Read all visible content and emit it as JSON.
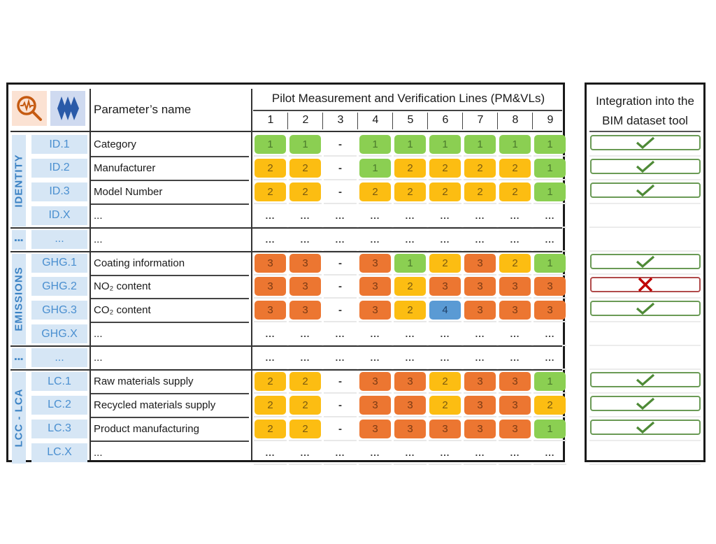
{
  "header": {
    "parameter_name_label": "Parameter’s name",
    "pm_title": "Pilot Measurement and Verification Lines (PM&VLs)",
    "pm_columns": [
      "1",
      "2",
      "3",
      "4",
      "5",
      "6",
      "7",
      "8",
      "9"
    ],
    "integration_title_line1": "Integration into the",
    "integration_title_line2": "BIM dataset tool",
    "icons": [
      "magnifier-pulse-icon",
      "diamond-stack-icon"
    ]
  },
  "colors": {
    "level_1": "#8bcf52",
    "level_2": "#fcbd12",
    "level_3": "#ec7631",
    "level_4": "#5a9ad4",
    "category_band": "#d6e6f5",
    "category_text": "#3b82c4",
    "check_green": "#4e8a36",
    "cross_red": "#c00000"
  },
  "groups": [
    {
      "category": "IDENTITY",
      "rows": [
        {
          "code": "ID.1",
          "name": "Category",
          "values": [
            "1",
            "1",
            "-",
            "1",
            "1",
            "1",
            "1",
            "1",
            "1"
          ],
          "integration": "check"
        },
        {
          "code": "ID.2",
          "name": "Manufacturer",
          "values": [
            "2",
            "2",
            "-",
            "1",
            "2",
            "2",
            "2",
            "2",
            "1"
          ],
          "integration": "check"
        },
        {
          "code": "ID.3",
          "name": "Model Number",
          "values": [
            "2",
            "2",
            "-",
            "2",
            "2",
            "2",
            "2",
            "2",
            "1"
          ],
          "integration": "check"
        },
        {
          "code": "ID.X",
          "name": "...",
          "values": [
            "...",
            "...",
            "...",
            "...",
            "...",
            "...",
            "...",
            "...",
            "..."
          ],
          "integration": ""
        }
      ]
    },
    {
      "category": "⋮",
      "rows": [
        {
          "code": "...",
          "name": "...",
          "values": [
            "...",
            "...",
            "...",
            "...",
            "...",
            "...",
            "...",
            "...",
            "..."
          ],
          "integration": ""
        }
      ]
    },
    {
      "category": "EMISSIONS",
      "rows": [
        {
          "code": "GHG.1",
          "name": "Coating information",
          "values": [
            "3",
            "3",
            "-",
            "3",
            "1",
            "2",
            "3",
            "2",
            "1"
          ],
          "integration": "check"
        },
        {
          "code": "GHG.2",
          "name": "NO₂ content",
          "values": [
            "3",
            "3",
            "-",
            "3",
            "2",
            "3",
            "3",
            "3",
            "3"
          ],
          "integration": "cross"
        },
        {
          "code": "GHG.3",
          "name": "CO₂ content",
          "values": [
            "3",
            "3",
            "-",
            "3",
            "2",
            "4",
            "3",
            "3",
            "3"
          ],
          "integration": "check"
        },
        {
          "code": "GHG.X",
          "name": "...",
          "values": [
            "...",
            "...",
            "...",
            "...",
            "...",
            "...",
            "...",
            "...",
            "..."
          ],
          "integration": ""
        }
      ]
    },
    {
      "category": "⋮",
      "rows": [
        {
          "code": "...",
          "name": "...",
          "values": [
            "...",
            "...",
            "...",
            "...",
            "...",
            "...",
            "...",
            "...",
            "..."
          ],
          "integration": ""
        }
      ]
    },
    {
      "category": "LCC - LCA",
      "rows": [
        {
          "code": "LC.1",
          "name": "Raw materials supply",
          "values": [
            "2",
            "2",
            "-",
            "3",
            "3",
            "2",
            "3",
            "3",
            "1"
          ],
          "integration": "check"
        },
        {
          "code": "LC.2",
          "name": "Recycled materials supply",
          "values": [
            "2",
            "2",
            "-",
            "3",
            "3",
            "2",
            "3",
            "3",
            "2"
          ],
          "integration": "check"
        },
        {
          "code": "LC.3",
          "name": "Product manufacturing",
          "values": [
            "2",
            "2",
            "-",
            "3",
            "3",
            "3",
            "3",
            "3",
            "1"
          ],
          "integration": "check"
        },
        {
          "code": "LC.X",
          "name": "...",
          "values": [
            "...",
            "...",
            "...",
            "...",
            "...",
            "...",
            "...",
            "...",
            "..."
          ],
          "integration": ""
        }
      ]
    }
  ]
}
